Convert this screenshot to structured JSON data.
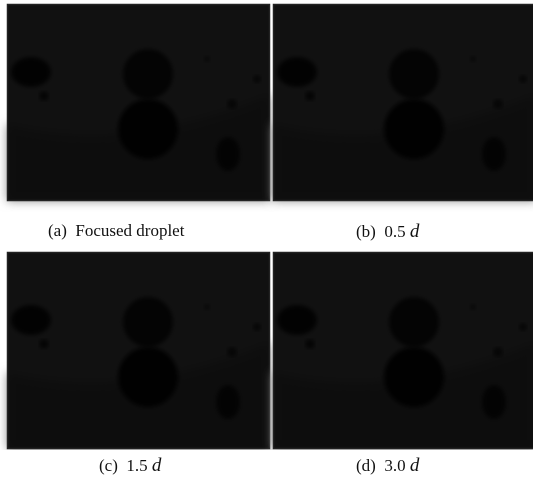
{
  "panels": [
    {
      "label": "(a)",
      "caption": "Focused droplet"
    },
    {
      "label": "(b)",
      "caption": "0.5",
      "unit": "d"
    },
    {
      "label": "(c)",
      "caption": "1.5",
      "unit": "d"
    },
    {
      "label": "(d)",
      "caption": "3.0",
      "unit": "d"
    }
  ]
}
